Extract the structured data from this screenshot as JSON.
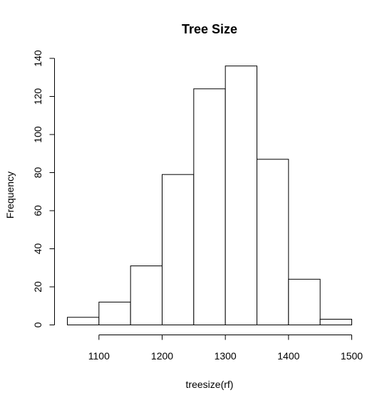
{
  "chart_data": {
    "type": "histogram",
    "title": "Tree Size",
    "xlabel": "treesize(rf)",
    "ylabel": "Frequency",
    "bins": [
      {
        "start": 1050,
        "end": 1100,
        "count": 4
      },
      {
        "start": 1100,
        "end": 1150,
        "count": 12
      },
      {
        "start": 1150,
        "end": 1200,
        "count": 31
      },
      {
        "start": 1200,
        "end": 1250,
        "count": 79
      },
      {
        "start": 1250,
        "end": 1300,
        "count": 124
      },
      {
        "start": 1300,
        "end": 1350,
        "count": 136
      },
      {
        "start": 1350,
        "end": 1400,
        "count": 87
      },
      {
        "start": 1400,
        "end": 1450,
        "count": 24
      },
      {
        "start": 1450,
        "end": 1500,
        "count": 3
      }
    ],
    "xticks": [
      1100,
      1200,
      1300,
      1400,
      1500
    ],
    "yticks": [
      0,
      20,
      40,
      60,
      80,
      100,
      120,
      140
    ],
    "xlim": [
      1050,
      1500
    ],
    "ylim": [
      0,
      140
    ],
    "grid": false,
    "bar_fill": "#ffffff",
    "bar_stroke": "#000000"
  }
}
